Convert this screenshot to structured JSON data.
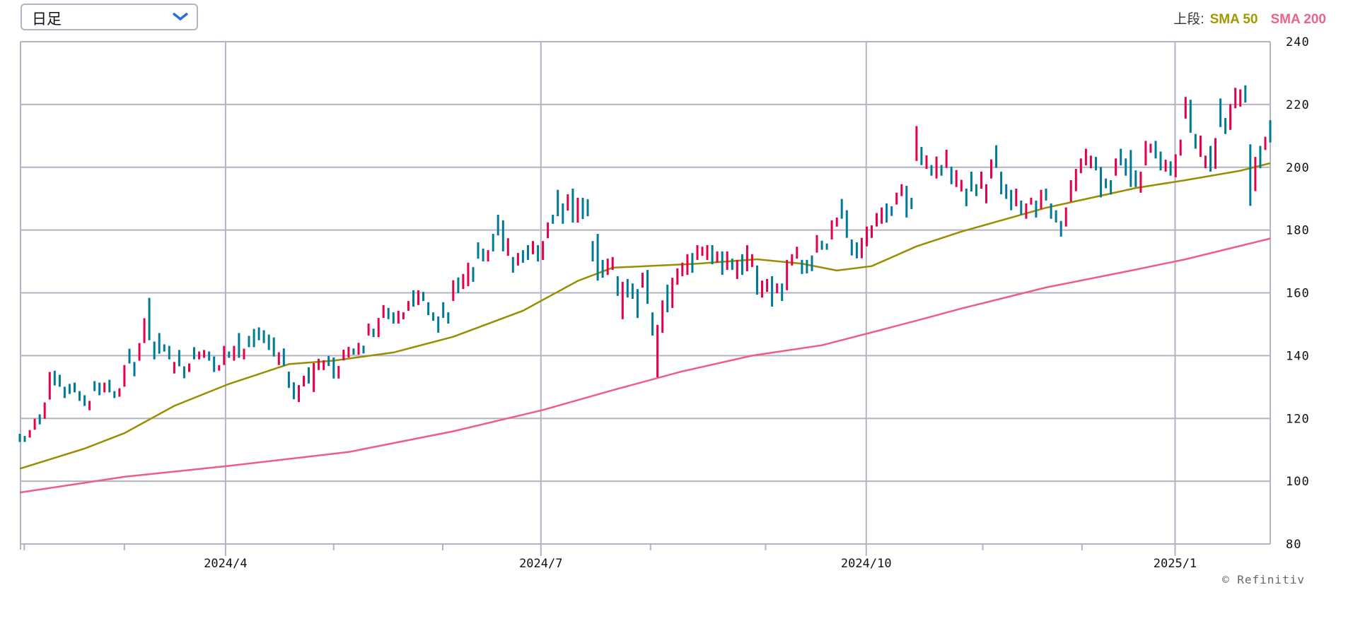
{
  "period_select": {
    "value": "日足",
    "icon": "chevron-down-icon"
  },
  "legend": {
    "label": "上段:",
    "sma50": "SMA 50",
    "sma200": "SMA 200"
  },
  "credit": "© Refinitiv",
  "colors": {
    "up": "#e6004c",
    "down": "#007a99",
    "sma50": "#9a8d00",
    "sma200": "#ef5d87",
    "grid": "#b3b3c3"
  },
  "chart_data": {
    "type": "candlestick",
    "ylim": [
      80,
      240
    ],
    "yticks": [
      240,
      220,
      200,
      180,
      160,
      140,
      120,
      100,
      80
    ],
    "xticks": [
      {
        "label": "2024/4",
        "bar": 41.3
      },
      {
        "label": "2024/7",
        "bar": 104.6
      },
      {
        "label": "2024/10",
        "bar": 169.9
      },
      {
        "label": "2025/1",
        "bar": 231.9
      }
    ],
    "minor_tick_bars": [
      0.9,
      21,
      63,
      84.9,
      126.6,
      149.7,
      193.3,
      213.2
    ],
    "grid": true,
    "bar_format": "[open, close]",
    "bars": [
      [
        115.1,
        112.5
      ],
      [
        114.4,
        112.5
      ],
      [
        113.9,
        116.3
      ],
      [
        116.4,
        119.9
      ],
      [
        121.3,
        118.1
      ],
      [
        119.9,
        125.1
      ],
      [
        126,
        134.8
      ],
      [
        135.2,
        130.5
      ],
      [
        133.9,
        130.1
      ],
      [
        130.1,
        126.5
      ],
      [
        131,
        127.8
      ],
      [
        131.4,
        128.3
      ],
      [
        128.7,
        125.6
      ],
      [
        127.4,
        124
      ],
      [
        122.6,
        125.6
      ],
      [
        131.9,
        128.7
      ],
      [
        131.4,
        127.4
      ],
      [
        128.3,
        131.4
      ],
      [
        132.3,
        128.3
      ],
      [
        128.7,
        126.5
      ],
      [
        126.9,
        129.6
      ],
      [
        130.1,
        137
      ],
      [
        142.2,
        137.5
      ],
      [
        138,
        133.4
      ],
      [
        138.4,
        144
      ],
      [
        144,
        151.9
      ],
      [
        158.4,
        144.9
      ],
      [
        144.5,
        138.8
      ],
      [
        147.2,
        140.6
      ],
      [
        143.6,
        141.3
      ],
      [
        143.1,
        138.8
      ],
      [
        134.3,
        138
      ],
      [
        141.8,
        136.6
      ],
      [
        136.6,
        132.8
      ],
      [
        134.8,
        137.5
      ],
      [
        142.7,
        138.8
      ],
      [
        138.8,
        141.3
      ],
      [
        139.3,
        141.8
      ],
      [
        141.3,
        138.4
      ],
      [
        139.7,
        134.8
      ],
      [
        135.2,
        137
      ],
      [
        137,
        143.1
      ],
      [
        141.3,
        139.3
      ],
      [
        138.4,
        143.1
      ],
      [
        147.2,
        139.3
      ],
      [
        138.8,
        142.2
      ],
      [
        146.3,
        142.7
      ],
      [
        148.5,
        142.7
      ],
      [
        149,
        144.9
      ],
      [
        148.1,
        144
      ],
      [
        146.7,
        141.8
      ],
      [
        145.8,
        139.7
      ],
      [
        137,
        141.1
      ],
      [
        142.3,
        136.7
      ],
      [
        134.9,
        129.7
      ],
      [
        131.5,
        126.1
      ],
      [
        125.2,
        130.6
      ],
      [
        130.2,
        133.6
      ],
      [
        136.3,
        131.1
      ],
      [
        128.4,
        137.6
      ],
      [
        135.4,
        139
      ],
      [
        135.4,
        138.5
      ],
      [
        139.9,
        136.7
      ],
      [
        139.4,
        132.7
      ],
      [
        132.7,
        136.7
      ],
      [
        138.5,
        141.9
      ],
      [
        139.4,
        142.8
      ],
      [
        142.3,
        140.3
      ],
      [
        140.3,
        144.1
      ],
      [
        143.2,
        140.7
      ],
      [
        146.4,
        150.2
      ],
      [
        148.6,
        145.9
      ],
      [
        145.9,
        152
      ],
      [
        152,
        156.1
      ],
      [
        155.2,
        151.6
      ],
      [
        153.8,
        150.2
      ],
      [
        150.2,
        154.3
      ],
      [
        151.6,
        153.8
      ],
      [
        154.3,
        157.4
      ],
      [
        160.8,
        155.6
      ],
      [
        156.1,
        160.8
      ],
      [
        160.3,
        157.4
      ],
      [
        157,
        152.9
      ],
      [
        153.8,
        151.1
      ],
      [
        152.5,
        147.3
      ],
      [
        157,
        152
      ],
      [
        153.8,
        150.2
      ],
      [
        157.4,
        164
      ],
      [
        164.9,
        159.9
      ],
      [
        161.2,
        166
      ],
      [
        162.1,
        169.6
      ],
      [
        168.2,
        163.5
      ],
      [
        176.1,
        170.9
      ],
      [
        174.1,
        170
      ],
      [
        170,
        173.6
      ],
      [
        178.8,
        173.2
      ],
      [
        184.9,
        178.3
      ],
      [
        183.1,
        173.2
      ],
      [
        171.8,
        177.4
      ],
      [
        171.4,
        166.4
      ],
      [
        168.7,
        172.7
      ],
      [
        173.6,
        169.6
      ],
      [
        175.2,
        170.5
      ],
      [
        172.3,
        176.5
      ],
      [
        175.2,
        170
      ],
      [
        170.5,
        176.5
      ],
      [
        177.4,
        182.4
      ],
      [
        184.9,
        182
      ],
      [
        192.8,
        184.4
      ],
      [
        188.5,
        182
      ],
      [
        186.2,
        191.4
      ],
      [
        193.2,
        182.4
      ],
      [
        182.4,
        190.3
      ],
      [
        190.3,
        183.5
      ],
      [
        189.8,
        184.4
      ],
      [
        176.5,
        170
      ],
      [
        178.8,
        163.9
      ],
      [
        170.5,
        164.8
      ],
      [
        165.7,
        170.9
      ],
      [
        167.3,
        171.4
      ],
      [
        165.3,
        159
      ],
      [
        151.6,
        163.5
      ],
      [
        164.4,
        158.5
      ],
      [
        163,
        158.1
      ],
      [
        161.2,
        152
      ],
      [
        161.7,
        166.4
      ],
      [
        167.3,
        156.5
      ],
      [
        153.8,
        146.4
      ],
      [
        133.1,
        149.8
      ],
      [
        147.3,
        157.6
      ],
      [
        162.6,
        153.8
      ],
      [
        155.2,
        164.8
      ],
      [
        162.6,
        167.8
      ],
      [
        165.3,
        169.6
      ],
      [
        165.7,
        172.3
      ],
      [
        172.7,
        166.4
      ],
      [
        170.5,
        175.2
      ],
      [
        171.8,
        174.7
      ],
      [
        170.5,
        175.2
      ],
      [
        175.2,
        169.1
      ],
      [
        169.6,
        173.2
      ],
      [
        173.2,
        165.7
      ],
      [
        167.3,
        173.2
      ],
      [
        170.9,
        167.3
      ],
      [
        164.4,
        170.5
      ],
      [
        172.3,
        165.7
      ],
      [
        166.9,
        175.2
      ],
      [
        168.2,
        172.3
      ],
      [
        168.7,
        159.4
      ],
      [
        158.5,
        163.9
      ],
      [
        160.3,
        164.4
      ],
      [
        165.3,
        155.6
      ],
      [
        159.9,
        163
      ],
      [
        163,
        157.4
      ],
      [
        160.8,
        170.5
      ],
      [
        168.7,
        172.3
      ],
      [
        170.9,
        174.7
      ],
      [
        170.5,
        166
      ],
      [
        170.5,
        166.2
      ],
      [
        171.9,
        166.9
      ],
      [
        172.8,
        178.4
      ],
      [
        176.6,
        173.7
      ],
      [
        175.7,
        173.7
      ],
      [
        177,
        183.1
      ],
      [
        181.1,
        184
      ],
      [
        189.9,
        183.6
      ],
      [
        186.3,
        177.5
      ],
      [
        177,
        171.9
      ],
      [
        176.1,
        171
      ],
      [
        171,
        177.5
      ],
      [
        174.8,
        181.1
      ],
      [
        177.5,
        181.5
      ],
      [
        181.1,
        185.4
      ],
      [
        182,
        187.2
      ],
      [
        188.5,
        182.4
      ],
      [
        187.6,
        184.5
      ],
      [
        188.1,
        191.9
      ],
      [
        190.8,
        194.6
      ],
      [
        194.1,
        184
      ],
      [
        190.3,
        186.7
      ],
      [
        202,
        213.1
      ],
      [
        206.5,
        200.7
      ],
      [
        199.5,
        203.8
      ],
      [
        200.7,
        197.3
      ],
      [
        196.4,
        203.4
      ],
      [
        200.7,
        197.3
      ],
      [
        199.8,
        205.6
      ],
      [
        200.2,
        194.6
      ],
      [
        193.7,
        199.1
      ],
      [
        192.3,
        196
      ],
      [
        193.2,
        187.6
      ],
      [
        198.6,
        192.3
      ],
      [
        194.6,
        190.8
      ],
      [
        193.2,
        198.6
      ],
      [
        188.5,
        194.6
      ],
      [
        196.4,
        202.5
      ],
      [
        207,
        199.8
      ],
      [
        198.6,
        191.4
      ],
      [
        194.6,
        189.9
      ],
      [
        192.8,
        186.3
      ],
      [
        187.6,
        193.2
      ],
      [
        189.4,
        184.9
      ],
      [
        183.6,
        188.5
      ],
      [
        188.1,
        190.3
      ],
      [
        189.4,
        184
      ],
      [
        186.7,
        192.8
      ],
      [
        193.2,
        189.4
      ],
      [
        188.5,
        183.6
      ],
      [
        186.3,
        182.4
      ],
      [
        182.9,
        177.9
      ],
      [
        181.1,
        187.2
      ],
      [
        189,
        195.9
      ],
      [
        192.4,
        199.5
      ],
      [
        198.1,
        202.8
      ],
      [
        200.6,
        205.9
      ],
      [
        199.7,
        203.7
      ],
      [
        203.3,
        199
      ],
      [
        200.1,
        190.4
      ],
      [
        196.4,
        193.3
      ],
      [
        195.9,
        191.3
      ],
      [
        197.3,
        202.8
      ],
      [
        205.9,
        200.6
      ],
      [
        202.8,
        197.3
      ],
      [
        205.5,
        193.7
      ],
      [
        199,
        193.7
      ],
      [
        191.9,
        198.6
      ],
      [
        200.6,
        208.4
      ],
      [
        204.6,
        207.5
      ],
      [
        208.4,
        202.8
      ],
      [
        205,
        199
      ],
      [
        198.6,
        202.4
      ],
      [
        201.9,
        197.3
      ],
      [
        196.8,
        204.1
      ],
      [
        203.7,
        208.8
      ],
      [
        215.5,
        222.4
      ],
      [
        221.5,
        211
      ],
      [
        210.6,
        205.9
      ],
      [
        203.3,
        210.1
      ],
      [
        199.7,
        203.7
      ],
      [
        206.8,
        198.6
      ],
      [
        199.5,
        209.3
      ],
      [
        221.9,
        212.8
      ],
      [
        215.7,
        210.6
      ],
      [
        211.9,
        220.1
      ],
      [
        218.8,
        225.3
      ],
      [
        219.3,
        224.8
      ],
      [
        226.1,
        220.6
      ],
      [
        207.3,
        187.7
      ],
      [
        192.4,
        203.3
      ],
      [
        206.8,
        199.7
      ],
      [
        205.5,
        209.7
      ],
      [
        215,
        207.9
      ]
    ],
    "series": [
      {
        "name": "SMA 50",
        "points": [
          [
            0,
            104
          ],
          [
            13,
            110.4
          ],
          [
            21,
            115.3
          ],
          [
            31,
            124
          ],
          [
            42,
            131
          ],
          [
            54,
            137.3
          ],
          [
            63,
            138.4
          ],
          [
            75,
            141
          ],
          [
            87,
            146
          ],
          [
            101,
            154.3
          ],
          [
            112,
            163.8
          ],
          [
            119,
            168
          ],
          [
            136,
            169.3
          ],
          [
            148,
            170.7
          ],
          [
            157,
            169.3
          ],
          [
            164,
            167.1
          ],
          [
            171,
            168.5
          ],
          [
            180,
            174.8
          ],
          [
            189,
            179.5
          ],
          [
            206,
            187.1
          ],
          [
            224,
            193.4
          ],
          [
            234,
            195.9
          ],
          [
            245,
            198.9
          ],
          [
            251,
            201.3
          ]
        ]
      },
      {
        "name": "SMA 200",
        "points": [
          [
            0,
            96.4
          ],
          [
            21,
            101.4
          ],
          [
            42,
            104.9
          ],
          [
            66,
            109.3
          ],
          [
            87,
            115.9
          ],
          [
            105,
            122.7
          ],
          [
            119,
            129
          ],
          [
            133,
            135
          ],
          [
            147,
            140
          ],
          [
            161,
            143.3
          ],
          [
            171,
            147.4
          ],
          [
            182,
            152
          ],
          [
            189,
            155
          ],
          [
            206,
            161.7
          ],
          [
            224,
            167.4
          ],
          [
            234,
            170.7
          ],
          [
            251,
            177.3
          ]
        ]
      }
    ]
  }
}
